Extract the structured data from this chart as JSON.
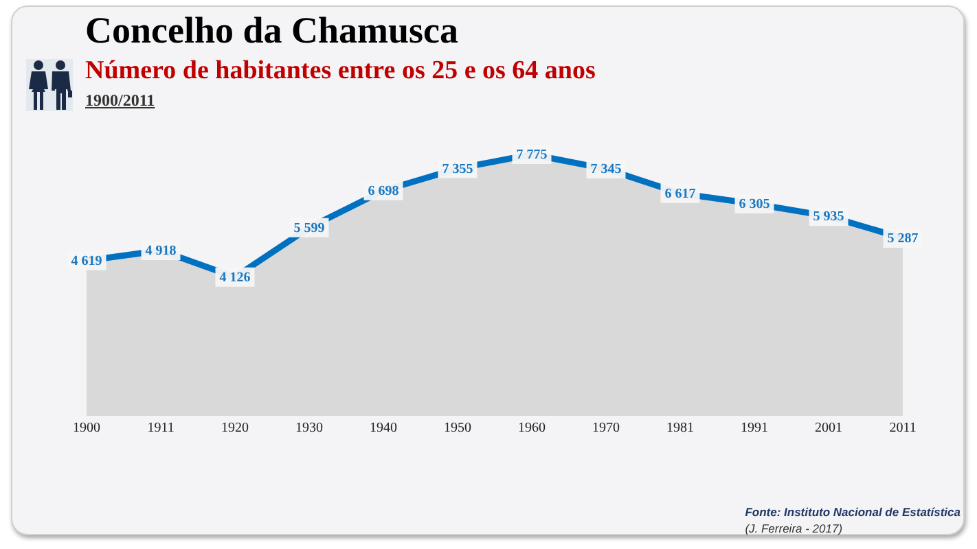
{
  "chart_data": {
    "type": "area",
    "title": "Concelho da Chamusca",
    "subtitle": "Número de habitantes entre os 25 e os 64 anos",
    "annotations": [
      "1900/2011",
      "Fonte: Instituto Nacional de Estatística",
      "(J. Ferreira - 2017)"
    ],
    "categories": [
      "1900",
      "1911",
      "1920",
      "1930",
      "1940",
      "1950",
      "1960",
      "1970",
      "1981",
      "1991",
      "2001",
      "2011"
    ],
    "series": [
      {
        "color": "#0070c0",
        "values": [
          4619,
          4918,
          4126,
          5599,
          6698,
          7355,
          7775,
          7345,
          6617,
          6305,
          5935,
          5287
        ],
        "value_labels": [
          "4 619",
          "4 918",
          "4 126",
          "5 599",
          "6 698",
          "7 355",
          "7 775",
          "7 345",
          "6 617",
          "6 305",
          "5 935",
          "5 287"
        ]
      }
    ],
    "tick_labels": "x",
    "grid": false,
    "legend": false
  }
}
